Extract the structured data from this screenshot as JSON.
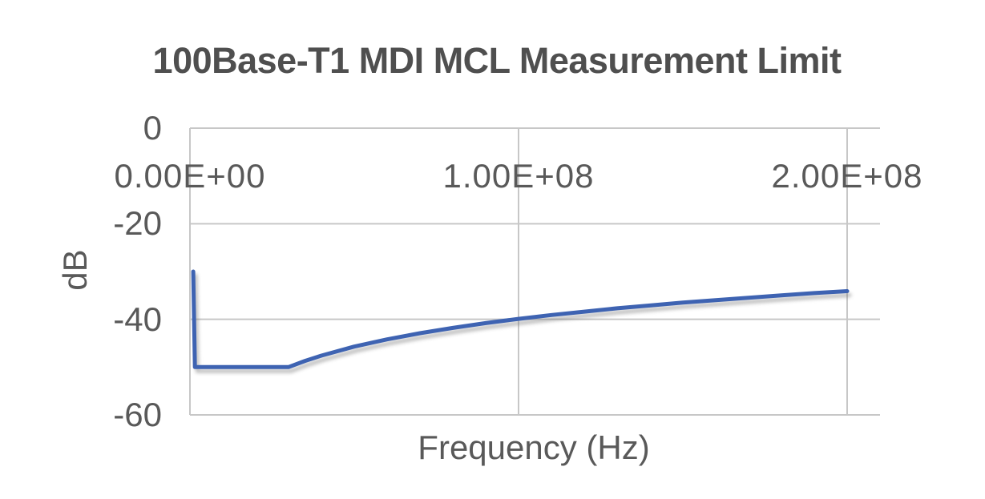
{
  "page": {
    "background": "#ffffff"
  },
  "chart_data": {
    "type": "line",
    "title": "100Base-T1 MDI MCL Measurement Limit",
    "xlabel": "Frequency (Hz)",
    "ylabel": "dB",
    "xlim": [
      0,
      210000000
    ],
    "ylim": [
      -60,
      0
    ],
    "grid": true,
    "legend": false,
    "x_ticks": [
      {
        "value": 0,
        "label": "0.00E+00"
      },
      {
        "value": 100000000,
        "label": "1.00E+08"
      },
      {
        "value": 200000000,
        "label": "2.00E+08"
      }
    ],
    "y_ticks": [
      {
        "value": 0,
        "label": "0"
      },
      {
        "value": -20,
        "label": "-20"
      },
      {
        "value": -40,
        "label": "-40"
      },
      {
        "value": -60,
        "label": "-60"
      }
    ],
    "colors": {
      "line": "#3E63B2",
      "grid": "#c7c7c7",
      "axis_text": "#595959",
      "title_text": "#4f4f4f"
    },
    "series": [
      {
        "name": "MCL measurement limit",
        "points": [
          [
            1000000,
            -30
          ],
          [
            1500000,
            -50
          ],
          [
            30000000,
            -50
          ],
          [
            35000000,
            -48.7
          ],
          [
            40000000,
            -47.6
          ],
          [
            50000000,
            -45.7
          ],
          [
            60000000,
            -44.2
          ],
          [
            70000000,
            -42.9
          ],
          [
            80000000,
            -41.8
          ],
          [
            90000000,
            -40.8
          ],
          [
            100000000,
            -39.9
          ],
          [
            110000000,
            -39.1
          ],
          [
            120000000,
            -38.4
          ],
          [
            130000000,
            -37.7
          ],
          [
            140000000,
            -37.1
          ],
          [
            150000000,
            -36.5
          ],
          [
            160000000,
            -36.0
          ],
          [
            170000000,
            -35.5
          ],
          [
            180000000,
            -35.0
          ],
          [
            190000000,
            -34.5
          ],
          [
            200000000,
            -34.1
          ]
        ]
      }
    ]
  }
}
